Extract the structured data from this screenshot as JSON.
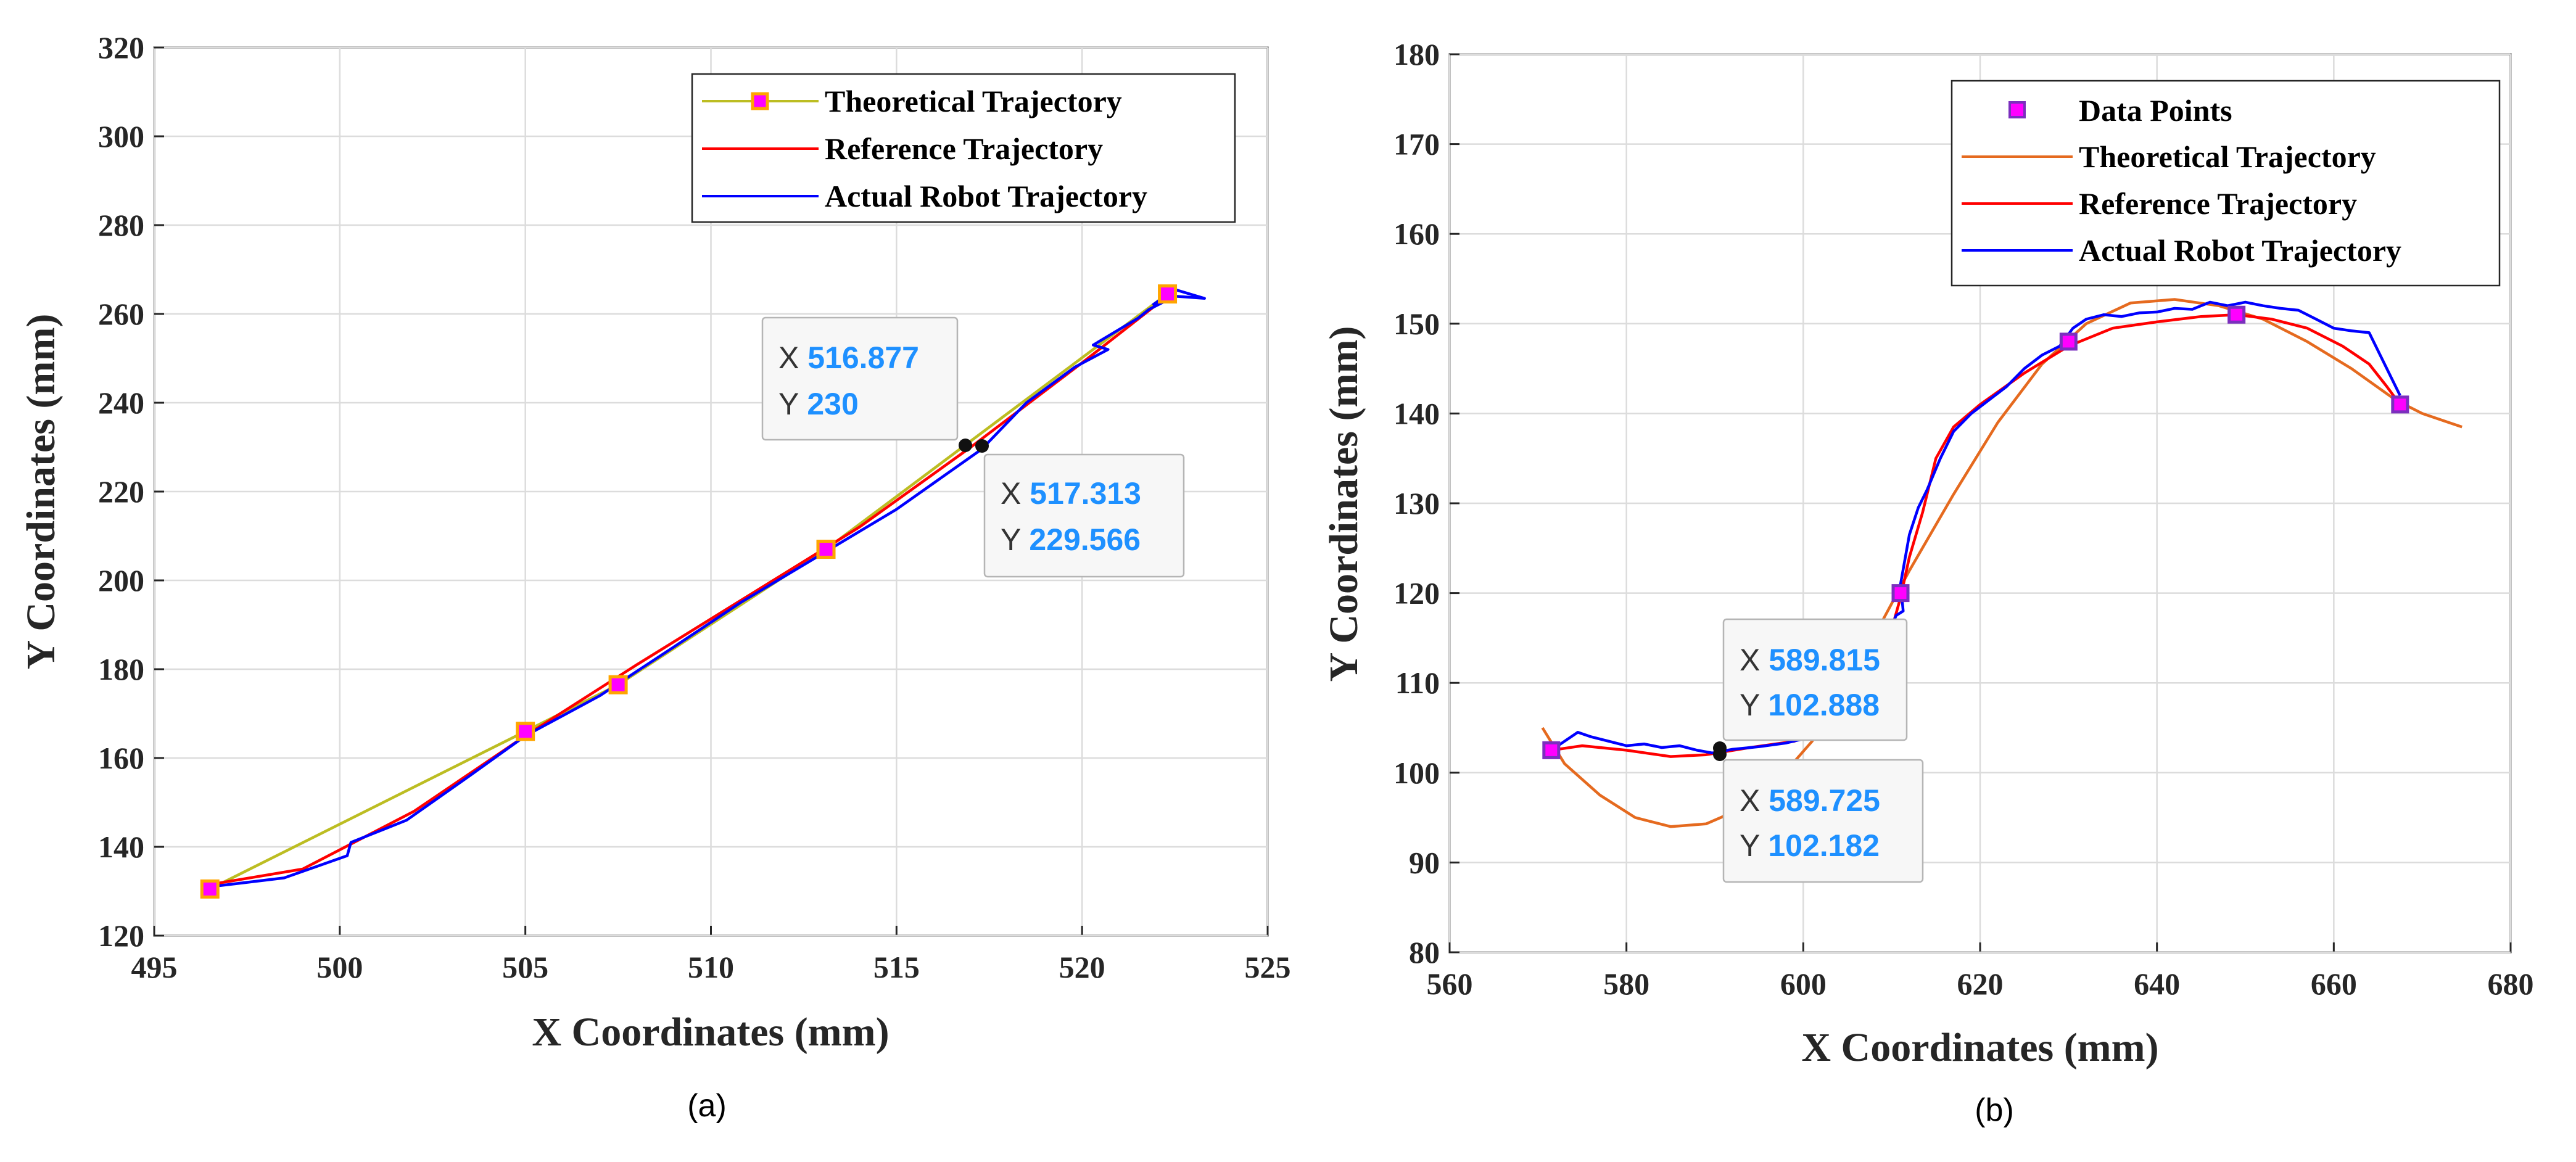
{
  "chart_data": [
    {
      "type": "line",
      "panel_label": "(a)",
      "xlabel": "X Coordinates (mm)",
      "ylabel": "Y Coordinates (mm)",
      "xlim": [
        495,
        525
      ],
      "ylim": [
        120,
        320
      ],
      "xticks": [
        "495",
        "500",
        "505",
        "510",
        "515",
        "520",
        "525"
      ],
      "yticks": [
        "120",
        "140",
        "160",
        "180",
        "200",
        "220",
        "240",
        "260",
        "280",
        "300",
        "320"
      ],
      "grid": true,
      "legend_position": "top-right",
      "legend": [
        "Theoretical Trajectory",
        "Reference Trajectory",
        "Actual Robot Trajectory"
      ],
      "series": [
        {
          "name": "Theoretical Trajectory",
          "color": "#bcbd22",
          "marker_fill": "#ff00ff",
          "marker_edge": "#ffa500",
          "x": [
            496.5,
            505.0,
            507.5,
            513.1,
            522.3
          ],
          "y": [
            130.5,
            166.0,
            176.5,
            207.0,
            264.5
          ]
        },
        {
          "name": "Reference Trajectory",
          "color": "#ff0000",
          "x": [
            496.5,
            499.0,
            502.0,
            505.0,
            508.0,
            511.0,
            514.0,
            517.0,
            520.0,
            522.3
          ],
          "y": [
            131.5,
            135.0,
            148.0,
            165.0,
            181.0,
            196.5,
            212.0,
            230.0,
            249.0,
            264.0
          ]
        },
        {
          "name": "Actual Robot Trajectory",
          "color": "#0000ff",
          "x": [
            496.5,
            498.5,
            500.2,
            500.3,
            501.8,
            503.5,
            505.0,
            507.0,
            509.0,
            510.8,
            513.0,
            515.0,
            517.3,
            518.5,
            519.8,
            520.7,
            520.3,
            521.5,
            521.8,
            522.5,
            523.3,
            522.5,
            521.9
          ],
          "y": [
            131.0,
            133.0,
            138.0,
            141.0,
            146.0,
            156.0,
            165.0,
            174.0,
            185.0,
            195.0,
            206.0,
            216.0,
            229.566,
            240.0,
            248.0,
            252.0,
            253.0,
            259.0,
            261.0,
            264.0,
            263.5,
            265.5,
            262.0
          ]
        }
      ],
      "datatips": [
        {
          "x": "516.877",
          "y": "230"
        },
        {
          "x": "517.313",
          "y": "229.566"
        }
      ]
    },
    {
      "type": "line",
      "panel_label": "(b)",
      "xlabel": "X Coordinates (mm)",
      "ylabel": "Y Coordinates (mm)",
      "xlim": [
        560,
        680
      ],
      "ylim": [
        80,
        180
      ],
      "xticks": [
        "560",
        "580",
        "600",
        "620",
        "640",
        "660",
        "680"
      ],
      "yticks": [
        "80",
        "90",
        "100",
        "110",
        "120",
        "130",
        "140",
        "150",
        "160",
        "170",
        "180"
      ],
      "grid": true,
      "legend_position": "top-right",
      "legend": [
        "Data Points",
        "Theoretical Trajectory",
        "Reference Trajectory",
        "Actual Robot Trajectory"
      ],
      "series": [
        {
          "name": "Data Points",
          "marker_fill": "#ff00ff",
          "marker_edge": "#7b2fbe",
          "x": [
            571.5,
            611.0,
            630.0,
            649.0,
            667.5
          ],
          "y": [
            102.5,
            120.0,
            148.0,
            151.0,
            141.0
          ]
        },
        {
          "name": "Theoretical Trajectory",
          "color": "#e56a1f",
          "x": [
            570.5,
            573.0,
            577.0,
            581.0,
            585.0,
            589.0,
            593.0,
            597.0,
            601.0,
            605.0,
            609.0,
            612.0,
            617.0,
            622.0,
            627.0,
            632.0,
            637.0,
            642.0,
            647.0,
            652.0,
            657.0,
            662.0,
            667.0,
            670.0,
            673.0,
            674.5
          ],
          "y": [
            105.0,
            101.0,
            97.5,
            95.0,
            94.0,
            94.3,
            96.0,
            99.0,
            103.5,
            110.0,
            117.0,
            122.5,
            131.0,
            139.0,
            145.5,
            150.0,
            152.3,
            152.7,
            152.0,
            150.5,
            148.0,
            145.0,
            141.5,
            140.0,
            139.0,
            138.5
          ]
        },
        {
          "name": "Reference Trajectory",
          "color": "#ff0000",
          "x": [
            571.5,
            575.0,
            580.0,
            585.0,
            589.0,
            594.0,
            599.0,
            604.0,
            608.0,
            610.0,
            611.0,
            612.0,
            613.5,
            615.0,
            617.0,
            620.0,
            625.0,
            630.0,
            635.0,
            640.0,
            645.0,
            649.0,
            653.0,
            657.0,
            661.0,
            664.0,
            666.0,
            667.5
          ],
          "y": [
            102.5,
            103.0,
            102.5,
            101.8,
            102.0,
            102.8,
            103.5,
            106.0,
            111.0,
            116.0,
            119.5,
            124.0,
            129.0,
            135.0,
            138.5,
            141.0,
            144.5,
            147.5,
            149.5,
            150.2,
            150.8,
            151.0,
            150.5,
            149.5,
            147.5,
            145.5,
            143.0,
            141.0
          ]
        },
        {
          "name": "Actual Robot Trajectory",
          "color": "#0000ff",
          "x": [
            571.5,
            573.0,
            574.5,
            576.0,
            578.0,
            580.0,
            582.0,
            584.0,
            586.0,
            588.0,
            589.7,
            592.0,
            595.0,
            598.0,
            601.0,
            604.0,
            607.0,
            609.0,
            610.5,
            611.3,
            611.0,
            612.0,
            613.0,
            614.0,
            615.5,
            617.0,
            619.0,
            621.0,
            623.0,
            625.0,
            627.0,
            629.0,
            630.5,
            632.0,
            634.0,
            636.0,
            638.0,
            640.0,
            642.0,
            644.0,
            646.0,
            648.0,
            650.0,
            652.0,
            654.0,
            656.0,
            658.0,
            660.0,
            662.0,
            664.0,
            666.0,
            667.5
          ],
          "y": [
            102.5,
            103.5,
            104.5,
            104.0,
            103.5,
            103.0,
            103.2,
            102.8,
            103.0,
            102.5,
            102.2,
            102.6,
            102.9,
            103.3,
            104.0,
            106.0,
            110.0,
            114.0,
            117.5,
            118.0,
            121.0,
            126.5,
            129.5,
            131.5,
            135.0,
            138.0,
            140.0,
            141.5,
            143.0,
            145.0,
            146.5,
            147.5,
            149.5,
            150.5,
            151.0,
            150.8,
            151.2,
            151.3,
            151.7,
            151.6,
            152.4,
            152.0,
            152.4,
            152.0,
            151.7,
            151.5,
            150.5,
            149.5,
            149.2,
            149.0,
            145.0,
            142.0
          ]
        }
      ],
      "datatips": [
        {
          "x": "589.815",
          "y": "102.888"
        },
        {
          "x": "589.725",
          "y": "102.182"
        }
      ]
    }
  ]
}
